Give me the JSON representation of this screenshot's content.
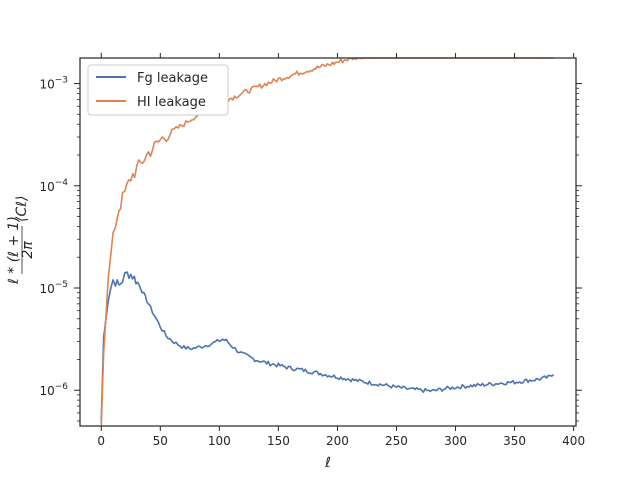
{
  "chart_data": {
    "type": "line",
    "title": "",
    "xlabel": "ℓ",
    "ylabel": "ℓ*(ℓ+1)/2π ⟨Cℓ⟩",
    "xlim": [
      -18,
      402
    ],
    "ylim_log10": [
      -6.35,
      -2.75
    ],
    "yscale": "log",
    "grid": false,
    "legend_position": "upper-left",
    "x_ticks": [
      0,
      50,
      100,
      150,
      200,
      250,
      300,
      350,
      400
    ],
    "y_ticks": [
      {
        "exp": -6,
        "label": "10",
        "sup": "−6"
      },
      {
        "exp": -5,
        "label": "10",
        "sup": "−5"
      },
      {
        "exp": -4,
        "label": "10",
        "sup": "−4"
      },
      {
        "exp": -3,
        "label": "10",
        "sup": "−3"
      }
    ],
    "series": [
      {
        "name": "Fg leakage",
        "color": "#4c72b0",
        "x": [
          0,
          2,
          4,
          6,
          8,
          10,
          12,
          15,
          18,
          20,
          22,
          25,
          28,
          32,
          36,
          40,
          45,
          50,
          55,
          60,
          65,
          70,
          75,
          80,
          85,
          90,
          95,
          100,
          103,
          106,
          110,
          115,
          120,
          130,
          140,
          150,
          160,
          170,
          180,
          190,
          200,
          210,
          220,
          230,
          240,
          250,
          260,
          270,
          280,
          290,
          300,
          310,
          320,
          330,
          340,
          350,
          360,
          370,
          380,
          383
        ],
        "y": [
          5e-07,
          3.2e-06,
          5.5e-06,
          8e-06,
          1e-05,
          1.2e-05,
          1.15e-05,
          1.05e-05,
          1.2e-05,
          1.32e-05,
          1.38e-05,
          1.36e-05,
          1.25e-05,
          1.08e-05,
          8.7e-06,
          7e-06,
          5.4e-06,
          4.2e-06,
          3.4e-06,
          3.05e-06,
          2.8e-06,
          2.62e-06,
          2.55e-06,
          2.6e-06,
          2.68e-06,
          2.78e-06,
          2.9e-06,
          3.05e-06,
          3.15e-06,
          3.05e-06,
          2.75e-06,
          2.45e-06,
          2.25e-06,
          2e-06,
          1.85e-06,
          1.75e-06,
          1.65e-06,
          1.58e-06,
          1.5e-06,
          1.42e-06,
          1.35e-06,
          1.28e-06,
          1.22e-06,
          1.17e-06,
          1.12e-06,
          1.07e-06,
          1.03e-06,
          1e-06,
          9.8e-07,
          1.03e-06,
          1.07e-06,
          1.1e-06,
          1.12e-06,
          1.15e-06,
          1.18e-06,
          1.2e-06,
          1.24e-06,
          1.28e-06,
          1.35e-06,
          1.42e-06
        ]
      },
      {
        "name": "HI leakage",
        "color": "#dd8452",
        "x": [
          0,
          2,
          4,
          6,
          8,
          10,
          12,
          15,
          18,
          20,
          25,
          30,
          35,
          40,
          45,
          50,
          55,
          60,
          65,
          70,
          75,
          80,
          90,
          100,
          110,
          120,
          130,
          140,
          150,
          160,
          170,
          180,
          190,
          200,
          210,
          220,
          230,
          240,
          250,
          260,
          270,
          280,
          290,
          300,
          310,
          320,
          330,
          340,
          350,
          360,
          370,
          380,
          383
        ],
        "y": [
          4e-07,
          2.5e-06,
          6e-06,
          1.2e-05,
          2e-05,
          3e-05,
          4.2e-05,
          6e-05,
          7.5e-05,
          8.5e-05,
          0.00012,
          0.000145,
          0.000175,
          0.00021,
          0.00024,
          0.00028,
          0.00031,
          0.00034,
          0.00037,
          0.0004,
          0.00044,
          0.00048,
          0.00056,
          0.00063,
          0.00072,
          0.00081,
          0.0009,
          0.001,
          0.0011,
          0.0012,
          0.0013,
          0.0014,
          0.0015,
          0.00162,
          0.00175,
          0.00185,
          0.00195,
          0.00205,
          0.00215,
          0.00225,
          0.00235,
          0.00245,
          0.00255,
          0.00265,
          0.00275,
          0.00285,
          0.00295,
          0.00305,
          0.00315,
          0.00328,
          0.0034,
          0.00355,
          0.00365
        ]
      }
    ]
  }
}
